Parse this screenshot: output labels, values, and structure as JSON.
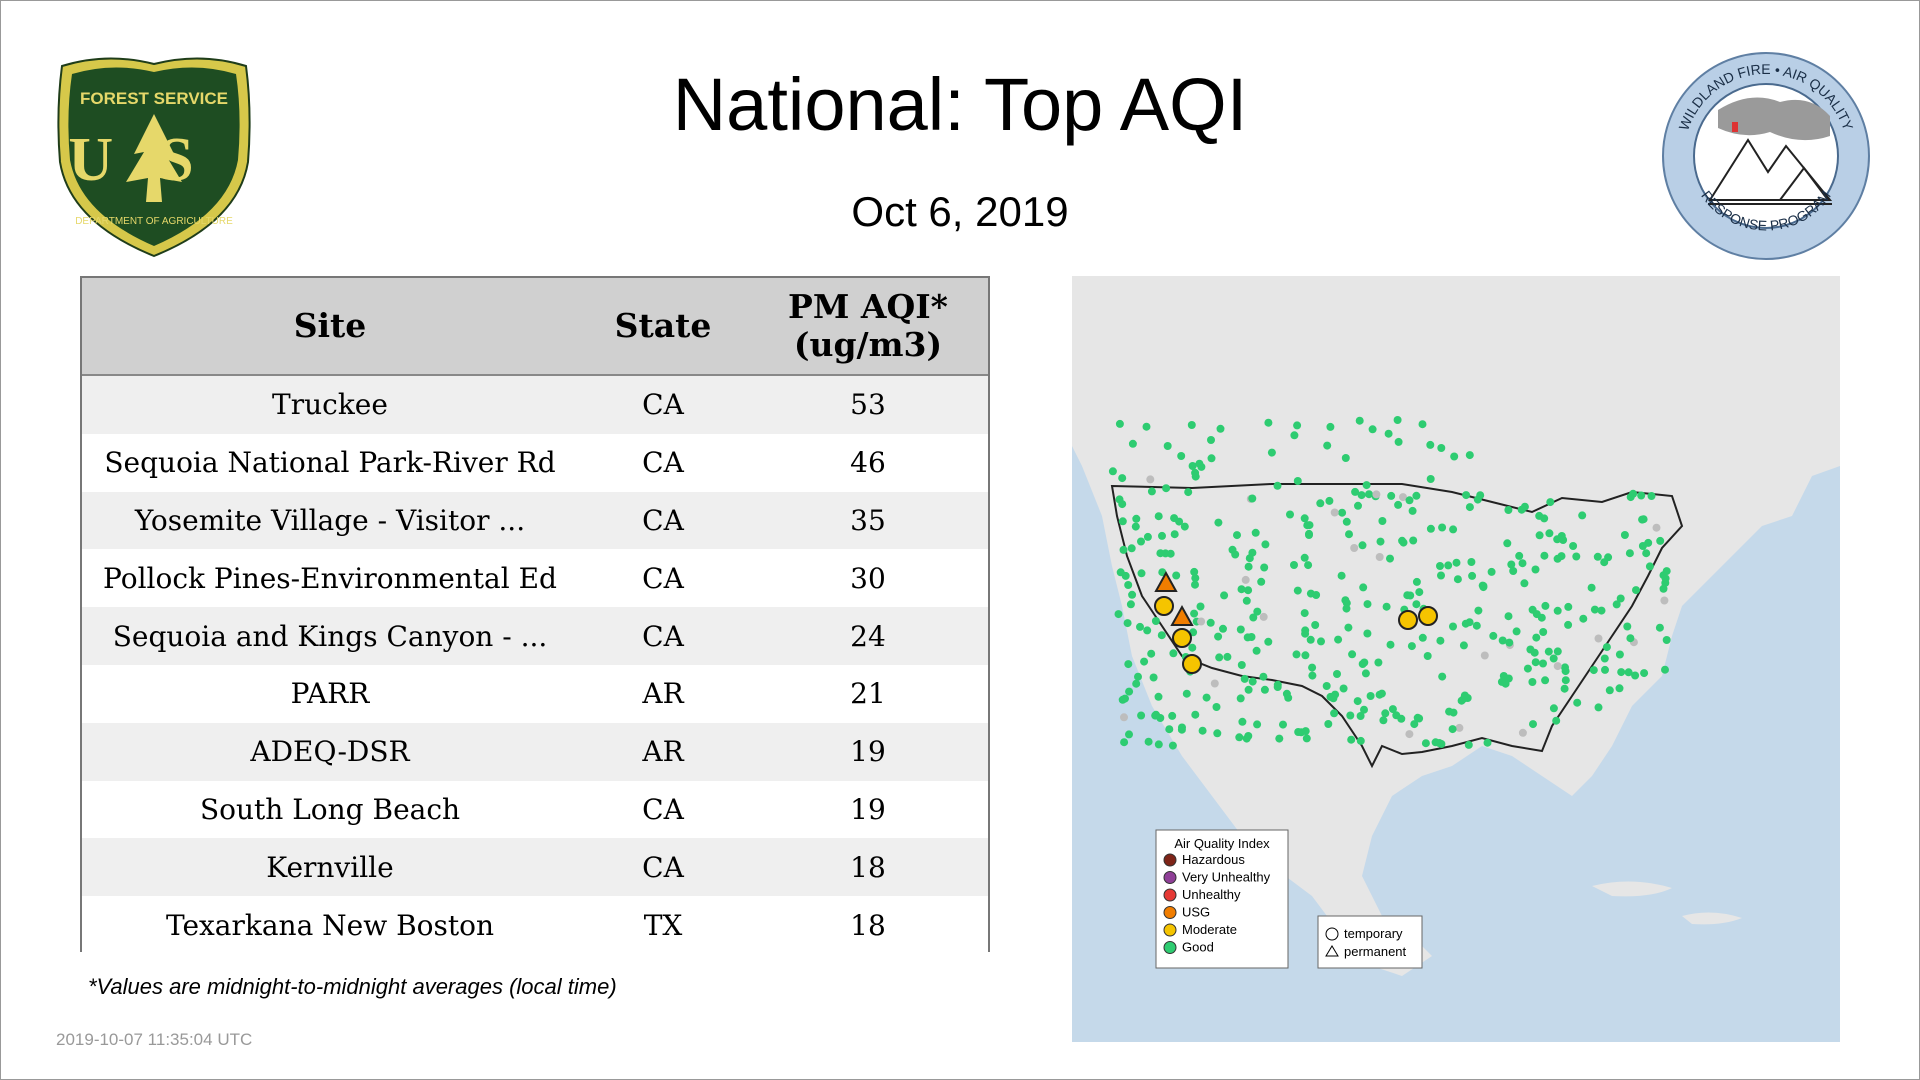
{
  "header": {
    "title": "National: Top AQI",
    "date": "Oct  6, 2019"
  },
  "logos": {
    "forest_service": {
      "top": "FOREST SERVICE",
      "letters": "US",
      "bottom": "DEPARTMENT OF AGRICULTURE"
    },
    "wildland": {
      "top": "WILDLAND FIRE • AIR QUALITY",
      "bottom": "RESPONSE PROGRAM"
    }
  },
  "table": {
    "headers": {
      "site": "Site",
      "state": "State",
      "aqi_line1": "PM AQI*",
      "aqi_line2": "(ug/m3)"
    },
    "rows": [
      {
        "site": "Truckee",
        "state": "CA",
        "aqi": "53"
      },
      {
        "site": "Sequoia National Park-River Rd",
        "state": "CA",
        "aqi": "46"
      },
      {
        "site": "Yosemite Village - Visitor ...",
        "state": "CA",
        "aqi": "35"
      },
      {
        "site": "Pollock Pines-Environmental Ed",
        "state": "CA",
        "aqi": "30"
      },
      {
        "site": "Sequoia and Kings Canyon - ...",
        "state": "CA",
        "aqi": "24"
      },
      {
        "site": "PARR",
        "state": "AR",
        "aqi": "21"
      },
      {
        "site": "ADEQ-DSR",
        "state": "AR",
        "aqi": "19"
      },
      {
        "site": "South Long Beach",
        "state": "CA",
        "aqi": "19"
      },
      {
        "site": "Kernville",
        "state": "CA",
        "aqi": "18"
      },
      {
        "site": "Texarkana New Boston",
        "state": "TX",
        "aqi": "18"
      }
    ]
  },
  "footnote": "*Values are midnight-to-midnight averages (local time)",
  "timestamp": "2019-10-07 11:35:04 UTC",
  "map": {
    "legend": {
      "title": "Air Quality Index",
      "items": [
        {
          "label": "Hazardous",
          "color": "#7e2418"
        },
        {
          "label": "Very Unhealthy",
          "color": "#8f3f97"
        },
        {
          "label": "Unhealthy",
          "color": "#e53935"
        },
        {
          "label": "USG",
          "color": "#f07d00"
        },
        {
          "label": "Moderate",
          "color": "#f5c400"
        },
        {
          "label": "Good",
          "color": "#2ecc71"
        }
      ]
    },
    "shape_legend": {
      "temporary": "temporary",
      "permanent": "permanent"
    },
    "colors": {
      "ocean": "#c5d9ea",
      "land": "#e6e6e6",
      "good": "#2ecc71",
      "moderate": "#f5c400",
      "usg": "#f07d00"
    }
  }
}
